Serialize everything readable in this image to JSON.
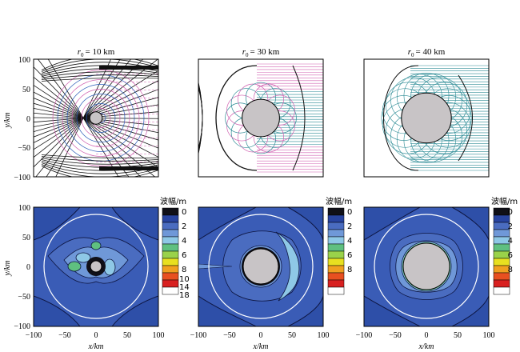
{
  "figure": {
    "panels_top": [
      {
        "title_prefix": "r",
        "title_sub": "0",
        "title_suffix": "= 10 km",
        "radius_km": 10
      },
      {
        "title_prefix": "r",
        "title_sub": "0",
        "title_suffix": "= 30 km",
        "radius_km": 30
      },
      {
        "title_prefix": "r",
        "title_sub": "0",
        "title_suffix": "= 40 km",
        "radius_km": 40
      }
    ],
    "ylabel": "y/km",
    "xlabel": "x/km",
    "ray_axis": {
      "yticks": [
        "100",
        "50",
        "0",
        "−50",
        "−100"
      ]
    },
    "wave_axis": {
      "yticks": [
        "100",
        "50",
        "0",
        "−50",
        "−100"
      ],
      "xticks": [
        "−100",
        "−50",
        "0",
        "50",
        "100"
      ]
    },
    "colorbars": [
      {
        "title": "波幅/m",
        "labels": [
          "0",
          "2",
          "4",
          "6",
          "8",
          "10",
          "14",
          "18"
        ],
        "colors": [
          "#101018",
          "#2844a0",
          "#4a6cc0",
          "#6f98d8",
          "#8ec8e6",
          "#5fc080",
          "#9ad24a",
          "#e8e020",
          "#f0a020",
          "#e85020",
          "#d82020",
          "#ffffff"
        ]
      },
      {
        "title": "波幅/m",
        "labels": [
          "0",
          "2",
          "4",
          "6",
          "8"
        ],
        "colors": [
          "#101018",
          "#2844a0",
          "#4a6cc0",
          "#6f98d8",
          "#8ec8e6",
          "#5fc080",
          "#9ad24a",
          "#e8e020",
          "#f0a020",
          "#e85020",
          "#d82020",
          "#ffffff"
        ]
      },
      {
        "title": "波幅/m",
        "labels": [
          "0",
          "2",
          "4",
          "6",
          "8"
        ],
        "colors": [
          "#101018",
          "#2844a0",
          "#4a6cc0",
          "#6f98d8",
          "#8ec8e6",
          "#5fc080",
          "#9ad24a",
          "#e8e020",
          "#f0a020",
          "#e85020",
          "#d82020",
          "#ffffff"
        ]
      }
    ],
    "colors": {
      "obstacle": "#c8c4c6",
      "ray_dark": "#111111",
      "ray_blue": "#2a5ab8",
      "ray_pink": "#d060b0",
      "ray_teal": "#2a8a94",
      "wave_bg": "#2e4fa8"
    }
  }
}
